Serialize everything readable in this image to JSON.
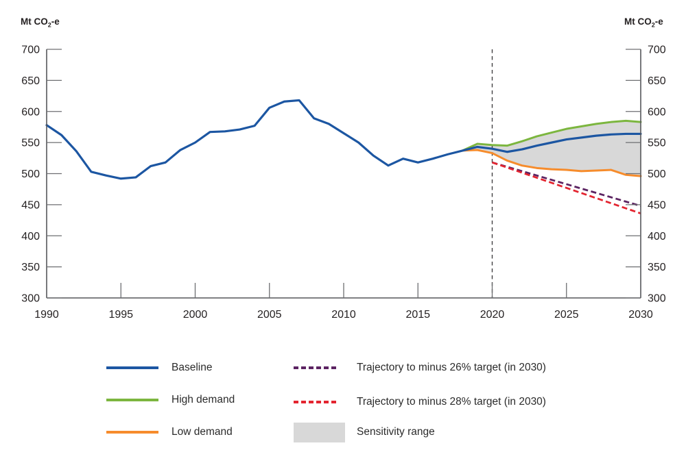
{
  "unit_label": {
    "prefix": "Mt CO",
    "sub": "2",
    "suffix": "-e",
    "text": "Mt CO2-e"
  },
  "chart_data": {
    "type": "line",
    "unit": "Mt CO2-e",
    "x_axis": {
      "min": 1990,
      "max": 2030,
      "tick_years": [
        1995,
        2000,
        2005,
        2010,
        2015,
        2020,
        2025
      ],
      "label_years": [
        1990,
        1995,
        2000,
        2005,
        2010,
        2015,
        2020,
        2025,
        2030
      ]
    },
    "y_axis": {
      "min": 300,
      "max": 700,
      "step": 50,
      "ticks": [
        300,
        350,
        400,
        450,
        500,
        550,
        600,
        650,
        700
      ]
    },
    "band": {
      "name": "Sensitivity range",
      "color": "#D8D8D8",
      "x": [
        2018,
        2019,
        2020,
        2021,
        2022,
        2023,
        2024,
        2025,
        2026,
        2027,
        2028,
        2029,
        2030
      ],
      "upper": [
        537,
        548,
        546,
        545,
        552,
        560,
        566,
        572,
        576,
        580,
        583,
        585,
        583
      ],
      "lower": [
        537,
        538,
        533,
        521,
        513,
        509,
        507,
        506,
        504,
        505,
        506,
        498,
        496
      ]
    },
    "vline": {
      "x": 2020,
      "style": "dashed",
      "color": "#414042"
    },
    "series": [
      {
        "id": "trajectory-26",
        "name": "Trajectory to minus 26% target (in 2030)",
        "color": "#5C2462",
        "style": "dashed",
        "width": 2.8,
        "x": [
          2020,
          2030
        ],
        "values": [
          518,
          448
        ]
      },
      {
        "id": "trajectory-28",
        "name": "Trajectory to minus 28% target (in 2030)",
        "color": "#E32530",
        "style": "dashed",
        "width": 2.8,
        "x": [
          2020,
          2030
        ],
        "values": [
          518,
          436
        ]
      },
      {
        "id": "high-demand",
        "name": "High demand",
        "color": "#7CB63F",
        "style": "solid",
        "width": 3,
        "x": [
          2018,
          2019,
          2020,
          2021,
          2022,
          2023,
          2024,
          2025,
          2026,
          2027,
          2028,
          2029,
          2030
        ],
        "values": [
          537,
          548,
          546,
          545,
          552,
          560,
          566,
          572,
          576,
          580,
          583,
          585,
          583
        ]
      },
      {
        "id": "low-demand",
        "name": "Low demand",
        "color": "#F68C2C",
        "style": "solid",
        "width": 3,
        "x": [
          2018,
          2019,
          2020,
          2021,
          2022,
          2023,
          2024,
          2025,
          2026,
          2027,
          2028,
          2029,
          2030
        ],
        "values": [
          537,
          538,
          533,
          521,
          513,
          509,
          507,
          506,
          504,
          505,
          506,
          498,
          496
        ]
      },
      {
        "id": "baseline",
        "name": "Baseline",
        "color": "#1C56A2",
        "style": "solid",
        "width": 3.2,
        "x": [
          1990,
          1991,
          1992,
          1993,
          1994,
          1995,
          1996,
          1997,
          1998,
          1999,
          2000,
          2001,
          2002,
          2003,
          2004,
          2005,
          2006,
          2007,
          2008,
          2009,
          2010,
          2011,
          2012,
          2013,
          2014,
          2015,
          2016,
          2017,
          2018,
          2019,
          2020,
          2021,
          2022,
          2023,
          2024,
          2025,
          2026,
          2027,
          2028,
          2029,
          2030
        ],
        "values": [
          578,
          562,
          536,
          503,
          497,
          492,
          494,
          512,
          518,
          538,
          550,
          567,
          568,
          571,
          577,
          606,
          616,
          618,
          589,
          580,
          565,
          550,
          529,
          513,
          524,
          518,
          524,
          531,
          537,
          543,
          540,
          535,
          539,
          545,
          550,
          555,
          558,
          561,
          563,
          564,
          564
        ]
      }
    ]
  },
  "legend": {
    "items": [
      {
        "label": "Baseline",
        "swatch": "line",
        "color": "#1C56A2"
      },
      {
        "label": "High demand",
        "swatch": "line",
        "color": "#7CB63F"
      },
      {
        "label": "Low demand",
        "swatch": "line",
        "color": "#F68C2C"
      },
      {
        "label": "Trajectory to minus 26% target (in 2030)",
        "swatch": "dashed",
        "color": "#5C2462"
      },
      {
        "label": "Trajectory to minus 28% target (in 2030)",
        "swatch": "dashed",
        "color": "#E32530"
      },
      {
        "label": "Sensitivity range",
        "swatch": "area",
        "color": "#D8D8D8"
      }
    ]
  }
}
